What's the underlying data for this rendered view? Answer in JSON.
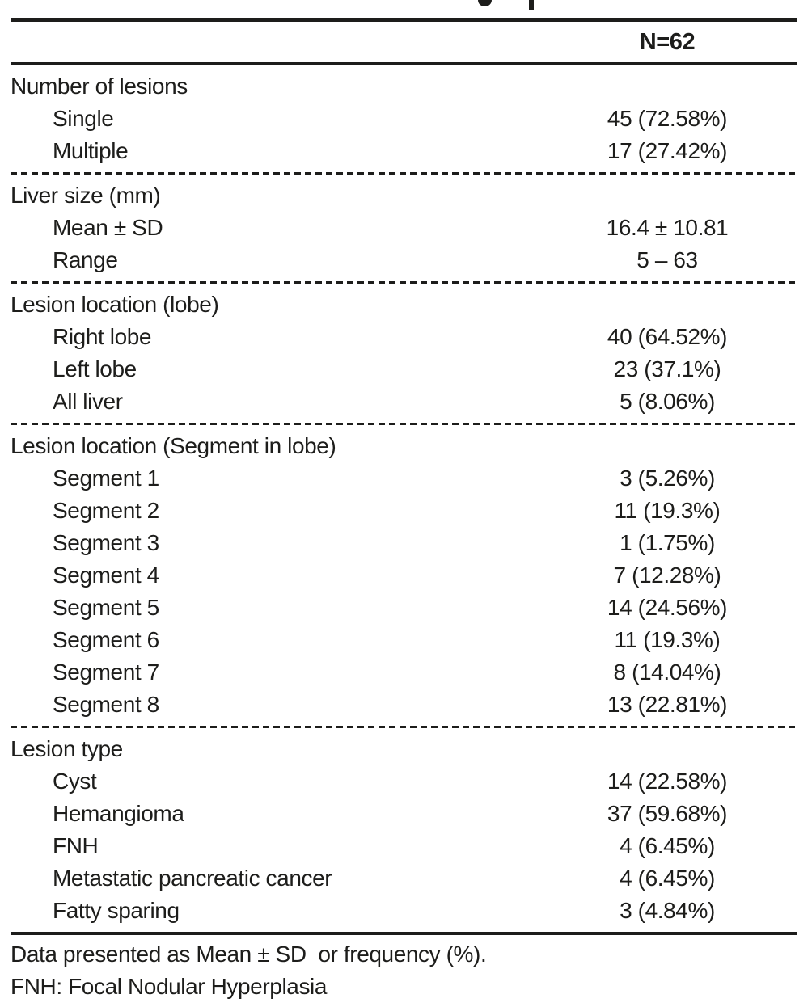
{
  "colors": {
    "text": "#1d1d1b",
    "rule": "#1d1d1b",
    "background": "#ffffff"
  },
  "header": {
    "column_label": "N=62"
  },
  "sections": [
    {
      "label": "Number of lesions",
      "rows": [
        {
          "label": "Single",
          "value": "45 (72.58%)"
        },
        {
          "label": "Multiple",
          "value": "17 (27.42%)"
        }
      ]
    },
    {
      "label": "Liver size (mm)",
      "rows": [
        {
          "label": "Mean ± SD",
          "value": "16.4 ± 10.81"
        },
        {
          "label": "Range",
          "value": "5 – 63"
        }
      ]
    },
    {
      "label": "Lesion location (lobe)",
      "rows": [
        {
          "label": "Right lobe",
          "value": "40 (64.52%)"
        },
        {
          "label": "Left lobe",
          "value": "23 (37.1%)"
        },
        {
          "label": "All liver",
          "value": "5 (8.06%)"
        }
      ]
    },
    {
      "label": "Lesion location (Segment in lobe)",
      "rows": [
        {
          "label": "Segment 1",
          "value": "3 (5.26%)"
        },
        {
          "label": "Segment 2",
          "value": "11 (19.3%)"
        },
        {
          "label": "Segment 3",
          "value": "1 (1.75%)"
        },
        {
          "label": "Segment 4",
          "value": "7 (12.28%)"
        },
        {
          "label": "Segment 5",
          "value": "14 (24.56%)"
        },
        {
          "label": "Segment 6",
          "value": "11 (19.3%)"
        },
        {
          "label": "Segment 7",
          "value": "8 (14.04%)"
        },
        {
          "label": "Segment 8",
          "value": "13 (22.81%)"
        }
      ]
    },
    {
      "label": "Lesion type",
      "rows": [
        {
          "label": "Cyst",
          "value": "14 (22.58%)"
        },
        {
          "label": "Hemangioma",
          "value": "37 (59.68%)"
        },
        {
          "label": "FNH",
          "value": "4 (6.45%)"
        },
        {
          "label": "Metastatic pancreatic cancer",
          "value": "4 (6.45%)"
        },
        {
          "label": "Fatty sparing",
          "value": "3 (4.84%)"
        }
      ]
    }
  ],
  "footnotes": [
    "Data presented as Mean ± SD  or frequency (%).",
    "FNH: Focal Nodular Hyperplasia"
  ]
}
